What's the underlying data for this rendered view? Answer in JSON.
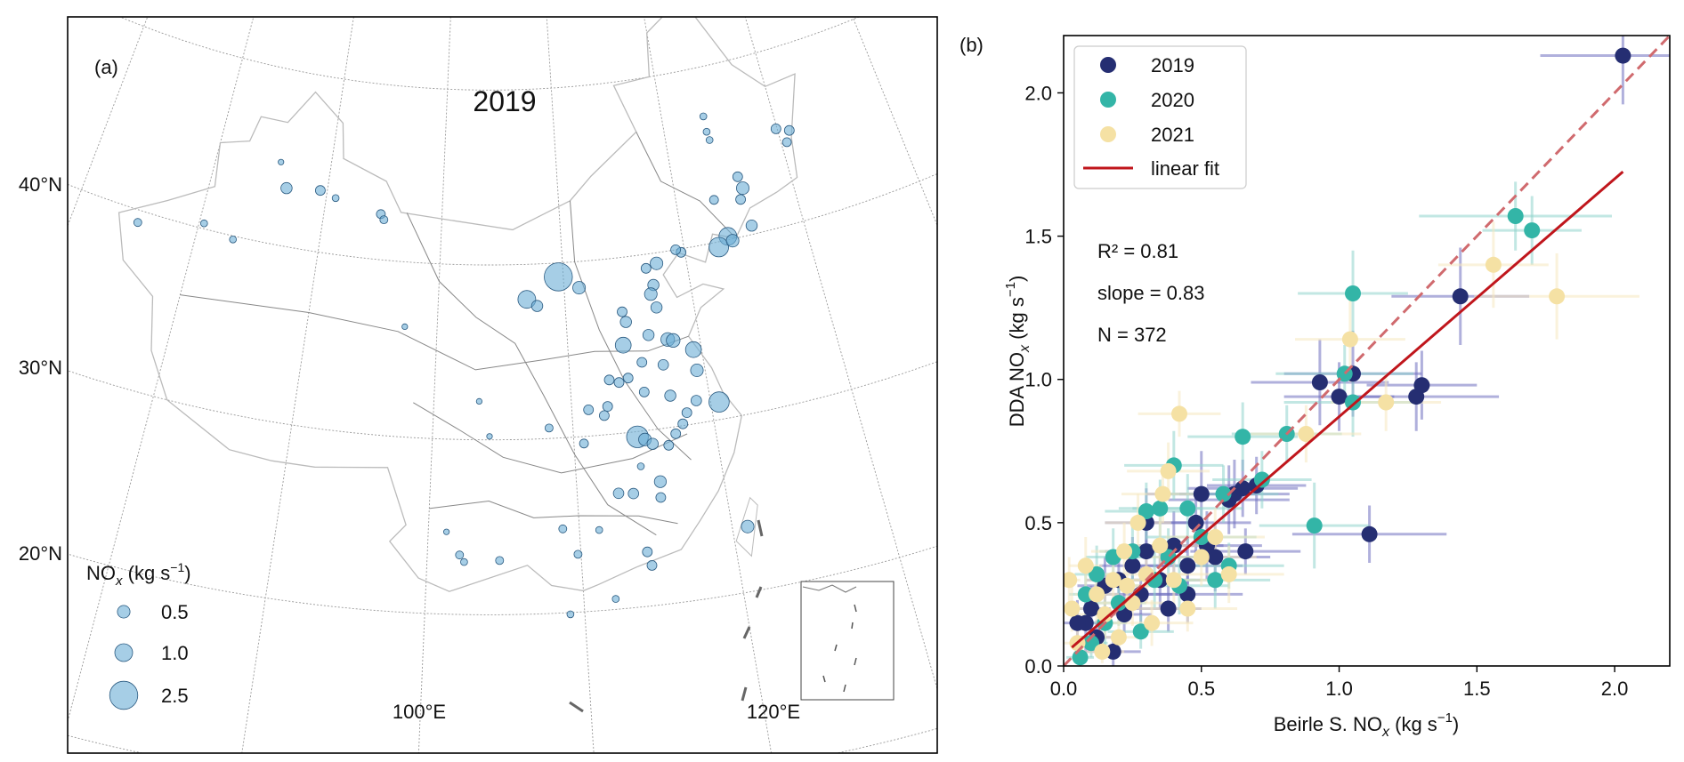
{
  "chart_data": [
    {
      "type": "map-bubble",
      "panel_label": "(a)",
      "title": "2019",
      "lat_labels": [
        {
          "value": 40,
          "text": "40°N"
        },
        {
          "value": 30,
          "text": "30°N"
        },
        {
          "value": 20,
          "text": "20°N"
        }
      ],
      "lon_labels": [
        {
          "value": 100,
          "text": "100°E"
        },
        {
          "value": 120,
          "text": "120°E"
        }
      ],
      "grid": {
        "lats": [
          10,
          20,
          30,
          40,
          50,
          60
        ],
        "lons": [
          70,
          80,
          90,
          100,
          110,
          120,
          130,
          140
        ]
      },
      "legend": {
        "title_prefix": "NO",
        "title_sub": "x",
        "title_unit": " (kg s",
        "title_exp": "−1",
        "title_suffix": ")",
        "sizes": [
          {
            "value": 0.5,
            "text": "0.5"
          },
          {
            "value": 1.0,
            "text": "1.0"
          },
          {
            "value": 2.5,
            "text": "2.5"
          }
        ]
      },
      "marker_color": "#6aaed6",
      "sites_lon_lat_nox": [
        [
          75.2,
          39.3,
          0.2
        ],
        [
          80.4,
          40.3,
          0.15
        ],
        [
          83.0,
          39.8,
          0.15
        ],
        [
          85.6,
          44.7,
          0.1
        ],
        [
          86.5,
          43.3,
          0.4
        ],
        [
          89.4,
          43.5,
          0.3
        ],
        [
          90.8,
          43.2,
          0.15
        ],
        [
          94.8,
          42.6,
          0.25
        ],
        [
          95.1,
          42.3,
          0.2
        ],
        [
          97.5,
          36.3,
          0.1
        ],
        [
          109.6,
          39.2,
          2.5
        ],
        [
          107.0,
          38.0,
          1.0
        ],
        [
          111.2,
          38.5,
          0.5
        ],
        [
          107.8,
          37.6,
          0.4
        ],
        [
          123.8,
          47.2,
          0.15
        ],
        [
          123.8,
          46.3,
          0.15
        ],
        [
          123.9,
          45.8,
          0.15
        ],
        [
          129.9,
          45.5,
          0.3
        ],
        [
          131.0,
          45.2,
          0.3
        ],
        [
          130.5,
          44.6,
          0.25
        ],
        [
          125.6,
          43.4,
          0.3
        ],
        [
          125.8,
          42.7,
          0.5
        ],
        [
          125.4,
          42.1,
          0.3
        ],
        [
          123.2,
          42.4,
          0.25
        ],
        [
          125.8,
          40.5,
          0.4
        ],
        [
          123.7,
          40.2,
          1.0
        ],
        [
          122.8,
          39.7,
          1.2
        ],
        [
          124.0,
          39.9,
          0.5
        ],
        [
          119.7,
          39.8,
          0.3
        ],
        [
          119.3,
          40.0,
          0.3
        ],
        [
          117.6,
          39.4,
          0.5
        ],
        [
          117.1,
          38.2,
          0.4
        ],
        [
          116.8,
          37.7,
          0.5
        ],
        [
          117.1,
          36.9,
          0.4
        ],
        [
          116.7,
          39.2,
          0.3
        ],
        [
          114.4,
          36.9,
          0.3
        ],
        [
          114.6,
          36.3,
          0.4
        ],
        [
          114.2,
          35.0,
          0.8
        ],
        [
          116.2,
          35.4,
          0.4
        ],
        [
          117.6,
          35.0,
          0.6
        ],
        [
          118.0,
          34.9,
          0.6
        ],
        [
          119.4,
          34.2,
          0.8
        ],
        [
          115.45,
          33.9,
          0.3
        ],
        [
          117.0,
          33.6,
          0.35
        ],
        [
          114.3,
          33.1,
          0.3
        ],
        [
          119.4,
          33.0,
          0.5
        ],
        [
          112.9,
          33.1,
          0.3
        ],
        [
          113.6,
          32.9,
          0.3
        ],
        [
          115.35,
          32.2,
          0.3
        ],
        [
          117.2,
          31.8,
          0.4
        ],
        [
          120.6,
          31.0,
          1.3
        ],
        [
          118.2,
          30.7,
          0.3
        ],
        [
          119.0,
          31.3,
          0.35
        ],
        [
          114.5,
          29.7,
          1.5
        ],
        [
          115.0,
          29.5,
          0.5
        ],
        [
          115.5,
          29.2,
          0.4
        ],
        [
          116.6,
          29.0,
          0.3
        ],
        [
          117.2,
          29.6,
          0.3
        ],
        [
          117.8,
          30.1,
          0.3
        ],
        [
          111.2,
          31.5,
          0.3
        ],
        [
          112.6,
          31.6,
          0.3
        ],
        [
          112.3,
          31.1,
          0.3
        ],
        [
          110.7,
          29.6,
          0.25
        ],
        [
          114.5,
          28.0,
          0.15
        ],
        [
          112.8,
          26.6,
          0.35
        ],
        [
          113.8,
          26.5,
          0.35
        ],
        [
          115.6,
          26.1,
          0.3
        ],
        [
          115.7,
          27.0,
          0.45
        ],
        [
          111.3,
          24.6,
          0.15
        ],
        [
          114.3,
          23.1,
          0.3
        ],
        [
          114.5,
          22.3,
          0.3
        ],
        [
          112.0,
          20.6,
          0.15
        ],
        [
          109.1,
          19.9,
          0.15
        ],
        [
          121.0,
          23.7,
          0.5
        ],
        [
          102.1,
          23.4,
          0.2
        ],
        [
          101.2,
          24.7,
          0.1
        ],
        [
          102.4,
          23.0,
          0.15
        ],
        [
          104.7,
          23.1,
          0.2
        ],
        [
          108.9,
          24.8,
          0.2
        ],
        [
          109.8,
          23.3,
          0.2
        ],
        [
          104.05,
          30.2,
          0.1
        ],
        [
          108.3,
          30.6,
          0.2
        ],
        [
          103.3,
          32.2,
          0.1
        ]
      ]
    },
    {
      "type": "scatter",
      "panel_label": "(b)",
      "xlim": [
        0,
        2.2
      ],
      "ylim": [
        0,
        2.2
      ],
      "xticks": [
        {
          "value": 0,
          "text": "0.0"
        },
        {
          "value": 0.5,
          "text": "0.5"
        },
        {
          "value": 1.0,
          "text": "1.0"
        },
        {
          "value": 1.5,
          "text": "1.5"
        },
        {
          "value": 2.0,
          "text": "2.0"
        }
      ],
      "yticks": [
        {
          "value": 0,
          "text": "0.0"
        },
        {
          "value": 0.5,
          "text": "0.5"
        },
        {
          "value": 1.0,
          "text": "1.0"
        },
        {
          "value": 1.5,
          "text": "1.5"
        },
        {
          "value": 2.0,
          "text": "2.0"
        }
      ],
      "xlabel": {
        "prefix": "Beirle S. NO",
        "sub": "x",
        "unit": " (kg s",
        "exp": "−1",
        "suffix": ")"
      },
      "ylabel": {
        "prefix": "DDA NO",
        "sub": "x",
        "unit": " (kg s",
        "exp": "−1",
        "suffix": ")"
      },
      "stats": {
        "r2": "R² = 0.81",
        "slope": "slope = 0.83",
        "n": "N = 372"
      },
      "legend_position": "top-left",
      "fit": {
        "label": "linear fit",
        "slope": 0.83,
        "intercept": 0.04,
        "x_range": [
          0.03,
          2.03
        ],
        "color": "#c0161c"
      },
      "one_to_one": {
        "style": "dashed",
        "color": "#d06a6e"
      },
      "series": [
        {
          "name": "2019",
          "color": "#252e72",
          "err_color": "#6f6fc0",
          "points_x_y_xerr_yerr": [
            [
              0.08,
              0.15,
              0.06,
              0.1
            ],
            [
              0.1,
              0.2,
              0.07,
              0.08
            ],
            [
              0.15,
              0.28,
              0.1,
              0.1
            ],
            [
              0.12,
              0.1,
              0.08,
              0.06
            ],
            [
              0.2,
              0.3,
              0.12,
              0.1
            ],
            [
              0.22,
              0.18,
              0.1,
              0.08
            ],
            [
              0.25,
              0.35,
              0.12,
              0.1
            ],
            [
              0.28,
              0.25,
              0.15,
              0.1
            ],
            [
              0.3,
              0.4,
              0.15,
              0.12
            ],
            [
              0.35,
              0.3,
              0.15,
              0.1
            ],
            [
              0.38,
              0.2,
              0.12,
              0.08
            ],
            [
              0.4,
              0.42,
              0.18,
              0.12
            ],
            [
              0.45,
              0.25,
              0.2,
              0.1
            ],
            [
              0.45,
              0.35,
              0.2,
              0.1
            ],
            [
              0.5,
              0.6,
              0.2,
              0.15
            ],
            [
              0.52,
              0.42,
              0.2,
              0.12
            ],
            [
              0.55,
              0.38,
              0.2,
              0.12
            ],
            [
              0.6,
              0.58,
              0.22,
              0.12
            ],
            [
              0.62,
              0.6,
              0.2,
              0.12
            ],
            [
              0.65,
              0.62,
              0.2,
              0.1
            ],
            [
              0.7,
              0.63,
              0.18,
              0.1
            ],
            [
              0.66,
              0.4,
              0.2,
              0.08
            ],
            [
              0.18,
              0.05,
              0.1,
              0.05
            ],
            [
              0.05,
              0.15,
              0.05,
              0.08
            ],
            [
              0.3,
              0.5,
              0.15,
              0.12
            ],
            [
              0.48,
              0.5,
              0.2,
              0.12
            ],
            [
              0.93,
              0.99,
              0.25,
              0.15
            ],
            [
              1.05,
              1.02,
              0.25,
              0.15
            ],
            [
              1.0,
              0.94,
              0.2,
              0.12
            ],
            [
              1.28,
              0.94,
              0.3,
              0.12
            ],
            [
              1.3,
              0.98,
              0.2,
              0.12
            ],
            [
              1.44,
              1.29,
              0.25,
              0.17
            ],
            [
              2.03,
              2.13,
              0.3,
              0.17
            ],
            [
              1.11,
              0.46,
              0.28,
              0.1
            ]
          ]
        },
        {
          "name": "2020",
          "color": "#33b5a7",
          "err_color": "#8fd4cc",
          "points_x_y_xerr_yerr": [
            [
              1.64,
              1.57,
              0.35,
              0.12
            ],
            [
              1.7,
              1.52,
              0.18,
              0.12
            ],
            [
              1.05,
              1.3,
              0.2,
              0.15
            ],
            [
              1.02,
              1.02,
              0.25,
              0.1
            ],
            [
              1.05,
              0.92,
              0.25,
              0.12
            ],
            [
              0.91,
              0.49,
              0.2,
              0.15
            ],
            [
              0.81,
              0.81,
              0.2,
              0.1
            ],
            [
              0.65,
              0.8,
              0.2,
              0.12
            ],
            [
              0.72,
              0.65,
              0.18,
              0.1
            ],
            [
              0.3,
              0.54,
              0.15,
              0.1
            ],
            [
              0.4,
              0.7,
              0.18,
              0.12
            ],
            [
              0.35,
              0.55,
              0.15,
              0.1
            ],
            [
              0.45,
              0.55,
              0.2,
              0.12
            ],
            [
              0.58,
              0.6,
              0.2,
              0.1
            ],
            [
              0.5,
              0.45,
              0.2,
              0.1
            ],
            [
              0.6,
              0.35,
              0.2,
              0.08
            ],
            [
              0.08,
              0.25,
              0.06,
              0.08
            ],
            [
              0.12,
              0.32,
              0.08,
              0.1
            ],
            [
              0.15,
              0.15,
              0.08,
              0.08
            ],
            [
              0.2,
              0.22,
              0.1,
              0.08
            ],
            [
              0.25,
              0.4,
              0.12,
              0.1
            ],
            [
              0.28,
              0.12,
              0.12,
              0.06
            ],
            [
              0.33,
              0.3,
              0.15,
              0.1
            ],
            [
              0.38,
              0.38,
              0.15,
              0.1
            ],
            [
              0.42,
              0.28,
              0.18,
              0.1
            ],
            [
              0.1,
              0.08,
              0.06,
              0.05
            ],
            [
              0.18,
              0.38,
              0.1,
              0.1
            ],
            [
              0.55,
              0.3,
              0.2,
              0.1
            ],
            [
              0.06,
              0.03,
              0.05,
              0.04
            ]
          ]
        },
        {
          "name": "2021",
          "color": "#f5e1a4",
          "err_color": "#f5e8c0",
          "points_x_y_xerr_yerr": [
            [
              1.56,
              1.4,
              0.2,
              0.15
            ],
            [
              1.79,
              1.29,
              0.3,
              0.15
            ],
            [
              1.04,
              1.14,
              0.2,
              0.15
            ],
            [
              0.42,
              0.88,
              0.15,
              0.08
            ],
            [
              1.17,
              0.92,
              0.2,
              0.1
            ],
            [
              0.88,
              0.81,
              0.2,
              0.1
            ],
            [
              0.38,
              0.68,
              0.15,
              0.1
            ],
            [
              0.36,
              0.6,
              0.15,
              0.1
            ],
            [
              0.55,
              0.45,
              0.18,
              0.1
            ],
            [
              0.6,
              0.32,
              0.2,
              0.1
            ],
            [
              0.02,
              0.3,
              0.04,
              0.08
            ],
            [
              0.03,
              0.2,
              0.04,
              0.08
            ],
            [
              0.08,
              0.35,
              0.06,
              0.1
            ],
            [
              0.12,
              0.25,
              0.08,
              0.1
            ],
            [
              0.15,
              0.18,
              0.1,
              0.08
            ],
            [
              0.18,
              0.3,
              0.1,
              0.1
            ],
            [
              0.2,
              0.1,
              0.1,
              0.06
            ],
            [
              0.22,
              0.4,
              0.12,
              0.1
            ],
            [
              0.25,
              0.22,
              0.12,
              0.08
            ],
            [
              0.3,
              0.32,
              0.15,
              0.1
            ],
            [
              0.32,
              0.15,
              0.15,
              0.08
            ],
            [
              0.4,
              0.3,
              0.15,
              0.1
            ],
            [
              0.45,
              0.2,
              0.18,
              0.08
            ],
            [
              0.5,
              0.38,
              0.2,
              0.1
            ],
            [
              0.27,
              0.5,
              0.12,
              0.1
            ],
            [
              0.05,
              0.08,
              0.05,
              0.05
            ],
            [
              0.14,
              0.05,
              0.08,
              0.04
            ],
            [
              0.35,
              0.42,
              0.15,
              0.1
            ],
            [
              0.23,
              0.28,
              0.12,
              0.1
            ]
          ]
        }
      ]
    }
  ]
}
